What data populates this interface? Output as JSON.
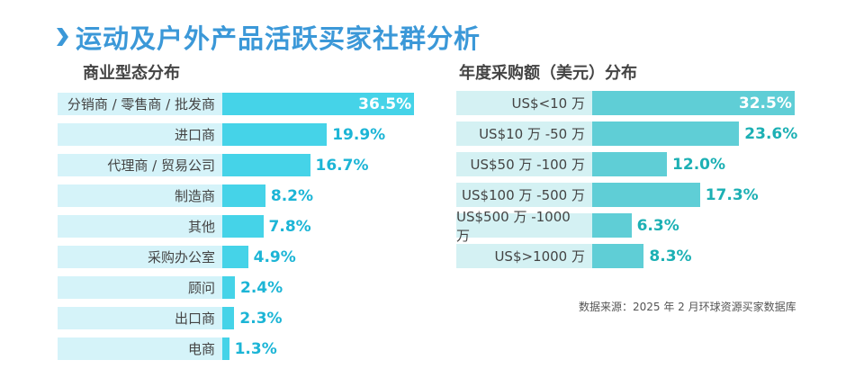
{
  "title": "运动及户外产品活跃买家社群分析",
  "colors": {
    "title": "#3b98d8",
    "left_bar": "#45d3e8",
    "left_bg": "#d5f3f9",
    "left_text": "#1cb5d6",
    "right_bar": "#5fced6",
    "right_bg": "#d4f1f3",
    "right_text": "#1cb0b4"
  },
  "chart_data": [
    {
      "type": "bar",
      "orientation": "horizontal",
      "title": "商业型态分布",
      "unit": "%",
      "categories": [
        "分销商 / 零售商 / 批发商",
        "进口商",
        "代理商 / 贸易公司",
        "制造商",
        "其他",
        "采购办公室",
        "顾问",
        "出口商",
        "电商"
      ],
      "values": [
        36.5,
        19.9,
        16.7,
        8.2,
        7.8,
        4.9,
        2.4,
        2.3,
        1.3
      ],
      "labels": [
        "36.5%",
        "19.9%",
        "16.7%",
        "8.2%",
        "7.8%",
        "4.9%",
        "2.4%",
        "2.3%",
        "1.3%"
      ]
    },
    {
      "type": "bar",
      "orientation": "horizontal",
      "title": "年度采购额（美元）分布",
      "unit": "%",
      "categories": [
        "US$<10 万",
        "US$10 万 -50 万",
        "US$50 万 -100 万",
        "US$100 万 -500 万",
        "US$500 万 -1000 万",
        "US$>1000 万"
      ],
      "values": [
        32.5,
        23.6,
        12.0,
        17.3,
        6.3,
        8.3
      ],
      "labels": [
        "32.5%",
        "23.6%",
        "12.0%",
        "17.3%",
        "6.3%",
        "8.3%"
      ]
    }
  ],
  "source": "数据来源：2025 年 2 月环球资源买家数据库"
}
